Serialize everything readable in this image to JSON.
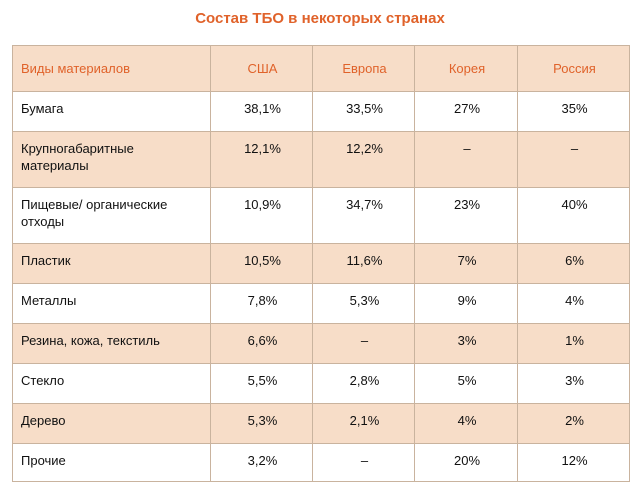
{
  "title": "Состав ТБО в некоторых странах",
  "table": {
    "headers": [
      "Виды материалов",
      "США",
      "Европа",
      "Корея",
      "Россия"
    ],
    "rows": [
      [
        "Бумага",
        "38,1%",
        "33,5%",
        "27%",
        "35%"
      ],
      [
        "Крупногабаритные материалы",
        "12,1%",
        "12,2%",
        "–",
        "–"
      ],
      [
        "Пищевые/ органические отходы",
        "10,9%",
        "34,7%",
        "23%",
        "40%"
      ],
      [
        "Пластик",
        "10,5%",
        "11,6%",
        "7%",
        "6%"
      ],
      [
        "Металлы",
        "7,8%",
        "5,3%",
        "9%",
        "4%"
      ],
      [
        "Резина, кожа, текстиль",
        "6,6%",
        "–",
        "3%",
        "1%"
      ],
      [
        "Стекло",
        "5,5%",
        "2,8%",
        "5%",
        "3%"
      ],
      [
        "Дерево",
        "5,3%",
        "2,1%",
        "4%",
        "2%"
      ],
      [
        "Прочие",
        "3,2%",
        "–",
        "20%",
        "12%"
      ]
    ]
  },
  "colors": {
    "accent": "#e0622a",
    "row_shade": "#f7ddc8",
    "border": "#c9b39e"
  }
}
